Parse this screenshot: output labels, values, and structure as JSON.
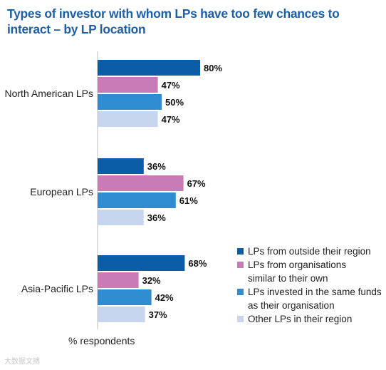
{
  "title": "Types of investor with whom LPs have too few chances to interact – by LP location",
  "unit_label": "% respondents",
  "watermark": "大数据文摘",
  "colors": {
    "title": "#1d5fa8",
    "axis": "#bbbbbb"
  },
  "chart_data": {
    "type": "bar",
    "orientation": "horizontal",
    "title": "Types of investor with whom LPs have too few chances to interact – by LP location",
    "xlabel": "% respondents",
    "ylabel": "",
    "xlim": [
      0,
      100
    ],
    "grid": false,
    "legend_position": "bottom-right",
    "categories": [
      "North American LPs",
      "European LPs",
      "Asia-Pacific LPs"
    ],
    "series": [
      {
        "name": "LPs from outside their region",
        "color": "#0b5da8",
        "values": [
          80,
          36,
          68
        ],
        "labels": [
          "80%",
          "36%",
          "68%"
        ]
      },
      {
        "name": "LPs from organisations similar to their own",
        "color": "#c87bb6",
        "values": [
          47,
          67,
          32
        ],
        "labels": [
          "47%",
          "67%",
          "32%"
        ]
      },
      {
        "name": "LPs invested in the same funds as their organisation",
        "color": "#2f8cd0",
        "values": [
          50,
          61,
          42
        ],
        "labels": [
          "50%",
          "61%",
          "42%"
        ]
      },
      {
        "name": "Other LPs in their region",
        "color": "#c7d5ee",
        "values": [
          47,
          36,
          37
        ],
        "labels": [
          "47%",
          "36%",
          "37%"
        ]
      }
    ]
  },
  "legend": [
    {
      "label_lines": [
        "LPs from outside their region"
      ],
      "color": "#0b5da8"
    },
    {
      "label_lines": [
        "LPs from organisations",
        "similar to their own"
      ],
      "color": "#c87bb6"
    },
    {
      "label_lines": [
        "LPs invested in the same funds",
        "as their organisation"
      ],
      "color": "#2f8cd0"
    },
    {
      "label_lines": [
        "Other LPs in their region"
      ],
      "color": "#c7d5ee"
    }
  ]
}
